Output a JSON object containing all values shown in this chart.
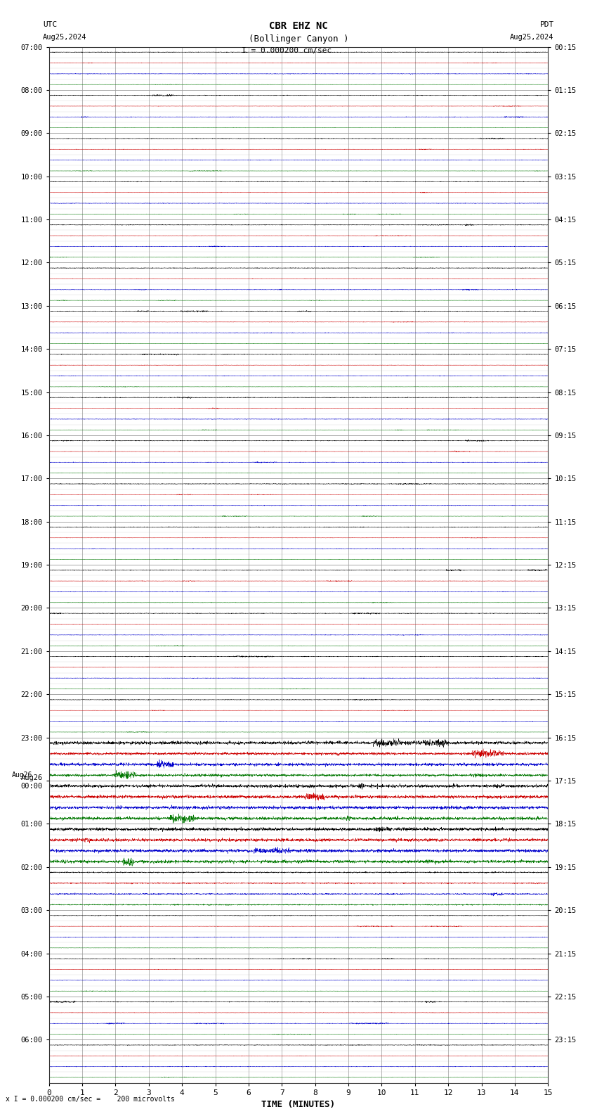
{
  "title_line1": "CBR EHZ NC",
  "title_line2": "(Bollinger Canyon )",
  "scale_label": "I = 0.000200 cm/sec",
  "bottom_label": "x I = 0.000200 cm/sec =    200 microvolts",
  "utc_label": "UTC",
  "utc_date": "Aug25,2024",
  "pdt_label": "PDT",
  "pdt_date": "Aug25,2024",
  "xlabel": "TIME (MINUTES)",
  "xmin": 0,
  "xmax": 15,
  "background_color": "#ffffff",
  "trace_colors": [
    "#000000",
    "#cc0000",
    "#0000cc",
    "#007700"
  ],
  "utc_times": [
    "07:00",
    "08:00",
    "09:00",
    "10:00",
    "11:00",
    "12:00",
    "13:00",
    "14:00",
    "15:00",
    "16:00",
    "17:00",
    "18:00",
    "19:00",
    "20:00",
    "21:00",
    "22:00",
    "23:00",
    "Aug26\n00:00",
    "01:00",
    "02:00",
    "03:00",
    "04:00",
    "05:00",
    "06:00"
  ],
  "pdt_times": [
    "00:15",
    "01:15",
    "02:15",
    "03:15",
    "04:15",
    "05:15",
    "06:15",
    "07:15",
    "08:15",
    "09:15",
    "10:15",
    "11:15",
    "12:15",
    "13:15",
    "14:15",
    "15:15",
    "16:15",
    "17:15",
    "18:15",
    "19:15",
    "20:15",
    "21:15",
    "22:15",
    "23:15"
  ],
  "n_hour_groups": 24,
  "traces_per_group": 4,
  "noise_base": 0.008,
  "grid_color": "#999999",
  "grid_minor_color": "#dddddd",
  "fig_width": 8.5,
  "fig_height": 15.84,
  "dpi": 100,
  "event_groups": [
    16,
    17,
    18
  ],
  "event_amplitude": 0.35
}
